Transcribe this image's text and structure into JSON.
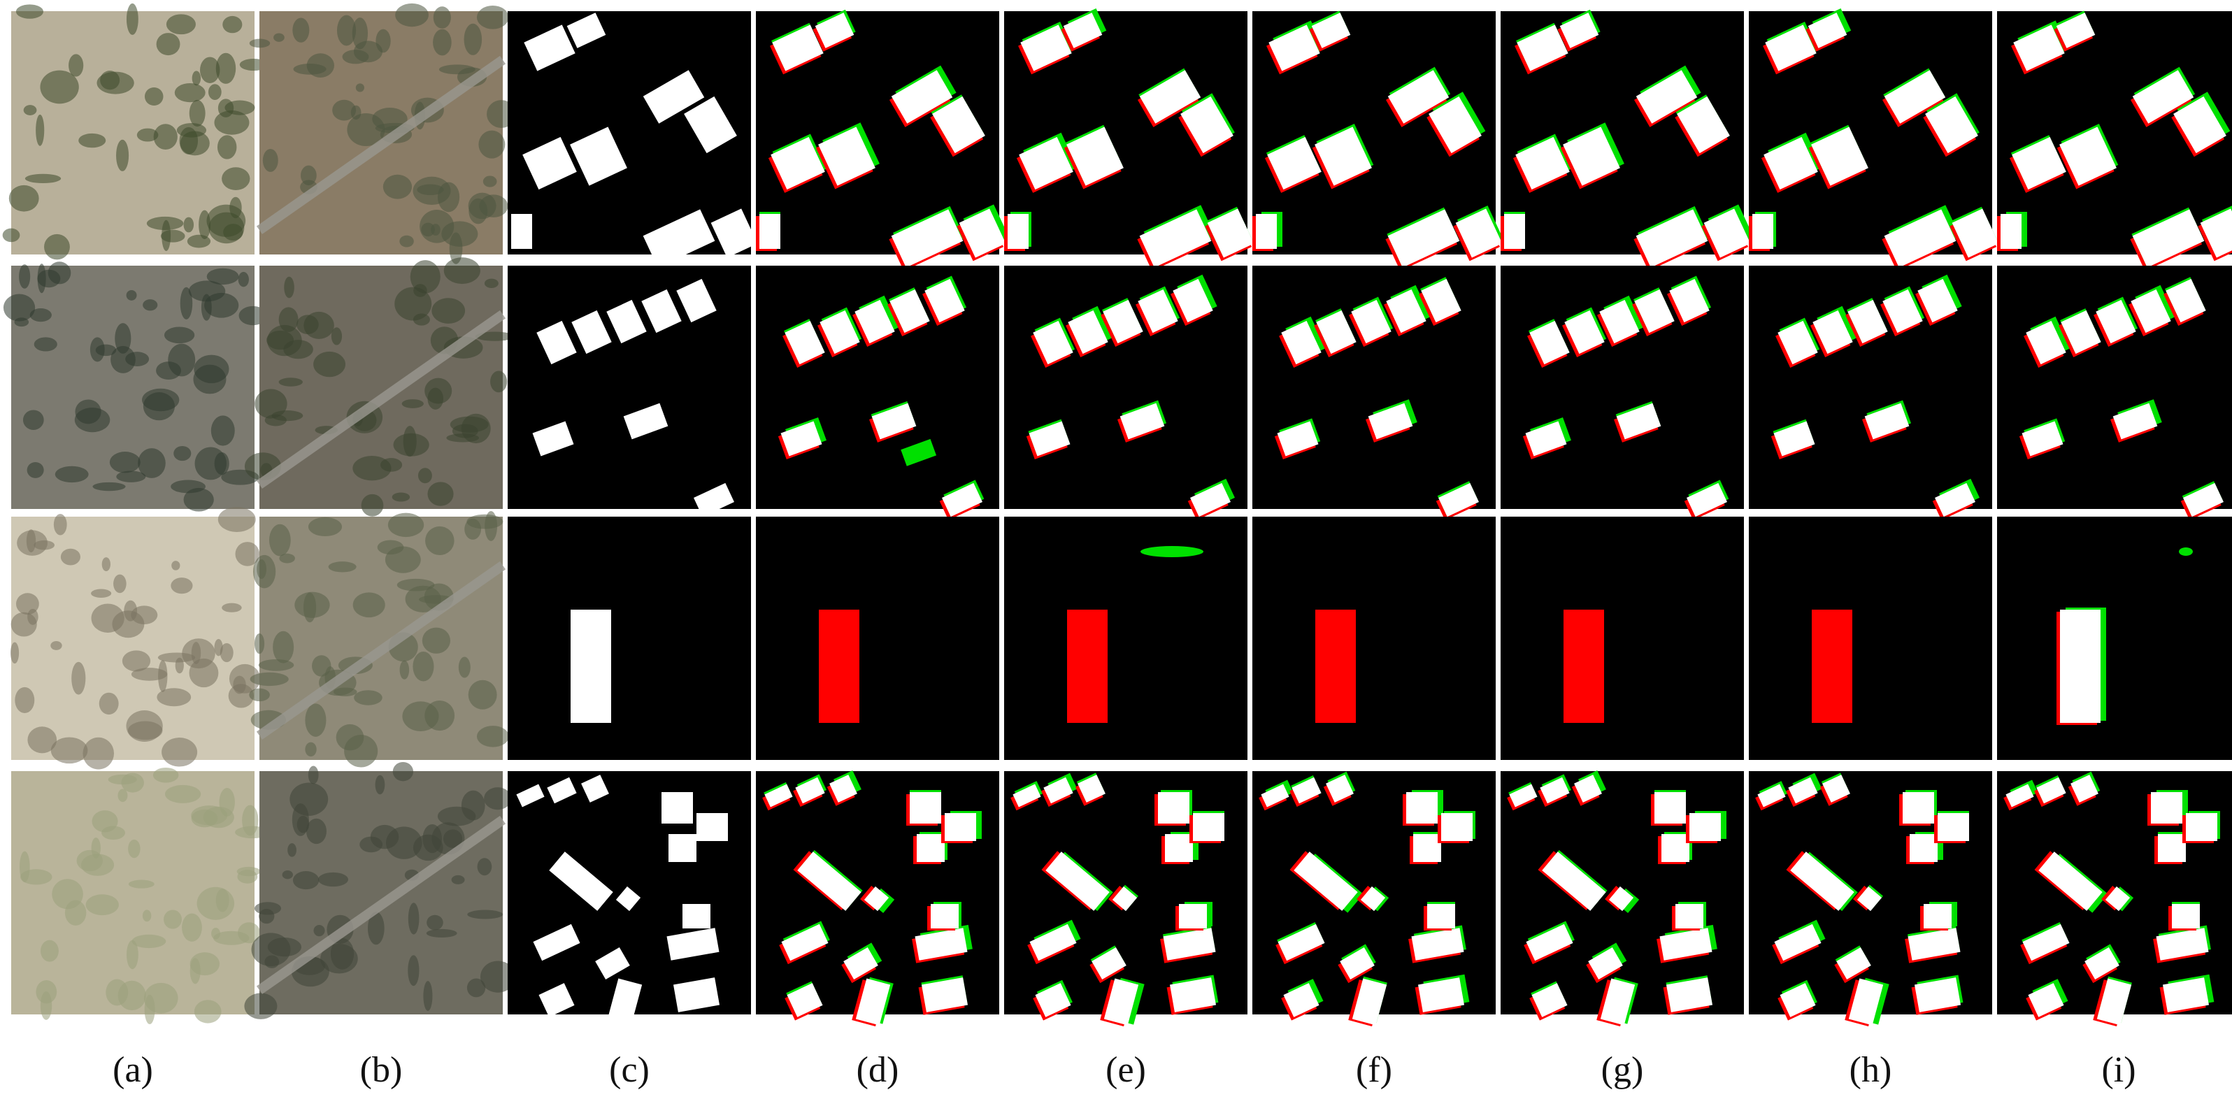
{
  "panel_labels": [
    "(a)",
    "(b)",
    "(c)",
    "(d)",
    "(e)",
    "(f)",
    "(g)",
    "(h)",
    "(i)"
  ]
}
